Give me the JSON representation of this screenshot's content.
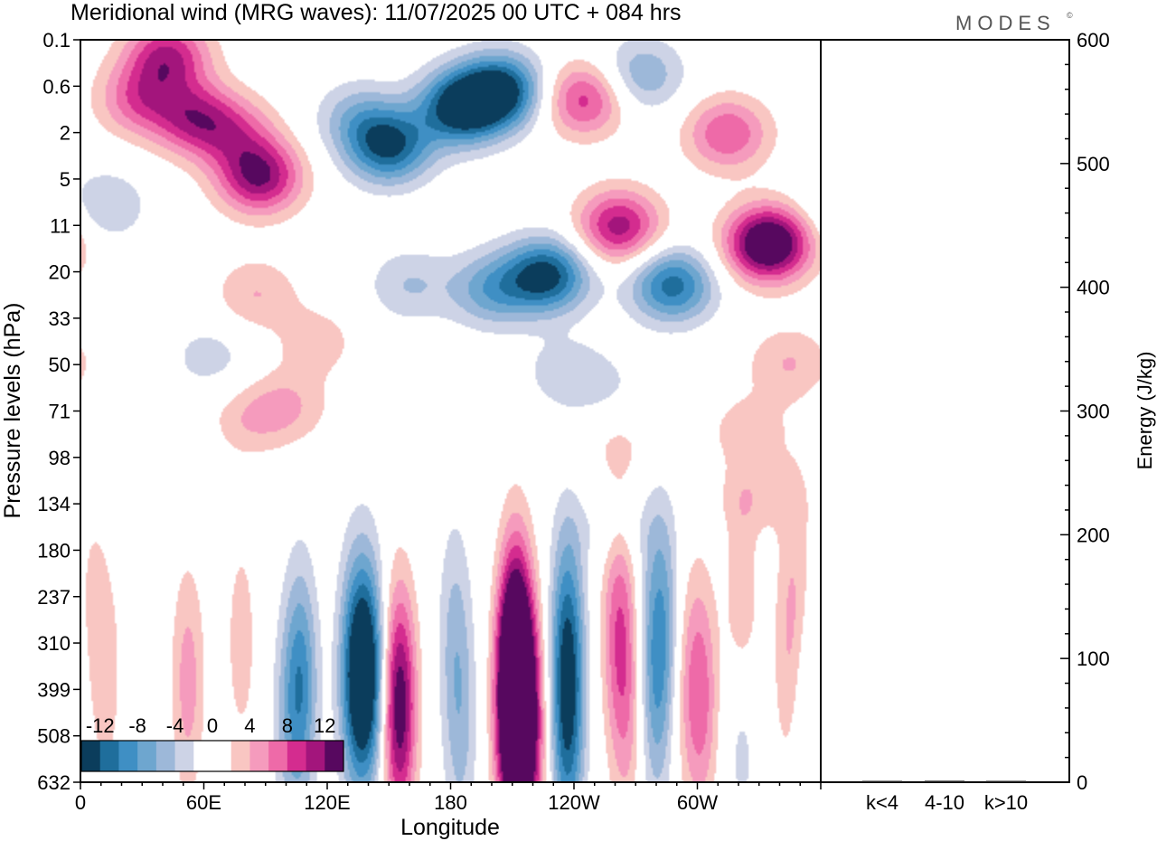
{
  "chart_data": {
    "type": "heatmap",
    "title": "Meridional wind (MRG waves):  11/07/2025  00 UTC  + 084 hrs",
    "brand": "MODES",
    "brand_mark": "©",
    "xlabel": "Longitude",
    "ylabel": "Pressure levels (hPa)",
    "ylabel_right": "Energy (J/kg)",
    "x_ticks": [
      {
        "lon": 0,
        "label": "0"
      },
      {
        "lon": 60,
        "label": "60E"
      },
      {
        "lon": 120,
        "label": "120E"
      },
      {
        "lon": 180,
        "label": "180"
      },
      {
        "lon": 240,
        "label": "120W"
      },
      {
        "lon": 300,
        "label": "60W"
      }
    ],
    "xlim": [
      0,
      360
    ],
    "pressure_levels": [
      "0.1",
      "0.6",
      "2",
      "5",
      "11",
      "20",
      "33",
      "50",
      "71",
      "98",
      "134",
      "180",
      "237",
      "310",
      "399",
      "508",
      "632"
    ],
    "colorbar": {
      "labels": [
        "-12",
        "-8",
        "-4",
        "0",
        "4",
        "8",
        "12"
      ],
      "colors": [
        "#0b3d5c",
        "#1f6e9c",
        "#3f8fc4",
        "#6ea6cf",
        "#9db8d9",
        "#cdd3e6",
        "#ffffff",
        "#ffffff",
        "#f9c6c2",
        "#f59bbd",
        "#ee6aa8",
        "#d42c8f",
        "#a3157c",
        "#57085f"
      ]
    },
    "contour_levels": [
      -12,
      -10,
      -8,
      -6,
      -4,
      -2,
      0,
      2,
      4,
      6,
      8,
      10,
      12
    ],
    "anomalies": [
      {
        "lon": 28,
        "p": 0.2,
        "v": 7
      },
      {
        "lon": 42,
        "p": 0.12,
        "v": 10
      },
      {
        "lon": 55,
        "p": 0.25,
        "v": 9
      },
      {
        "lon": 87,
        "p": 0.5,
        "v": 12
      },
      {
        "lon": 75,
        "p": 0.3,
        "v": 6
      },
      {
        "lon": 85,
        "p": 2.0,
        "v": 4
      },
      {
        "lon": 115,
        "p": 3.5,
        "v": 3
      },
      {
        "lon": 80,
        "p": 9,
        "v": 3
      },
      {
        "lon": 100,
        "p": 7.5,
        "v": 4
      },
      {
        "lon": 12,
        "p": 0.7,
        "v": -4
      },
      {
        "lon": 63,
        "p": 4.2,
        "v": -3
      },
      {
        "lon": 40,
        "p": 11.5,
        "v": -2
      },
      {
        "lon": 135,
        "p": 0.25,
        "v": -5
      },
      {
        "lon": 150,
        "p": 0.35,
        "v": -12
      },
      {
        "lon": 185,
        "p": 0.22,
        "v": -14
      },
      {
        "lon": 205,
        "p": 0.18,
        "v": -13
      },
      {
        "lon": 227,
        "p": 1.6,
        "v": -13
      },
      {
        "lon": 200,
        "p": 1.9,
        "v": -7
      },
      {
        "lon": 160,
        "p": 1.8,
        "v": -4
      },
      {
        "lon": 235,
        "p": 5,
        "v": -3
      },
      {
        "lon": 255,
        "p": 6,
        "v": -2
      },
      {
        "lon": 273,
        "p": 0.15,
        "v": -6
      },
      {
        "lon": 288,
        "p": 1.8,
        "v": -11
      },
      {
        "lon": 245,
        "p": 0.2,
        "v": 9
      },
      {
        "lon": 262,
        "p": 0.9,
        "v": 11
      },
      {
        "lon": 335,
        "p": 1.1,
        "v": 17
      },
      {
        "lon": 315,
        "p": 0.3,
        "v": 8
      },
      {
        "lon": 345,
        "p": 4.5,
        "v": 4
      },
      {
        "lon": 325,
        "p": 10,
        "v": 3
      },
      {
        "lon": 330,
        "p": 22,
        "v": 3
      },
      {
        "lon": 262,
        "p": 12,
        "v": 2
      },
      {
        "lon": 260,
        "p": 32,
        "v": -2
      },
      {
        "lon": 348,
        "p": 60,
        "v": 3
      },
      {
        "lon": 5,
        "p": 76,
        "v": 2
      },
      {
        "lon": 12,
        "p": 180,
        "v": 3
      },
      {
        "lon": 52,
        "p": 195,
        "v": 5
      },
      {
        "lon": 78,
        "p": 120,
        "v": 3
      },
      {
        "lon": 107,
        "p": 200,
        "v": -9
      },
      {
        "lon": 100,
        "p": 330,
        "v": -3
      },
      {
        "lon": 133,
        "p": 180,
        "v": -10
      },
      {
        "lon": 140,
        "p": 200,
        "v": -15
      },
      {
        "lon": 155,
        "p": 260,
        "v": 14
      },
      {
        "lon": 140,
        "p": 400,
        "v": 3
      },
      {
        "lon": 182,
        "p": 105,
        "v": -4
      },
      {
        "lon": 185,
        "p": 370,
        "v": -4
      },
      {
        "lon": 212,
        "p": 135,
        "v": 13
      },
      {
        "lon": 210,
        "p": 280,
        "v": 17
      },
      {
        "lon": 218,
        "p": 360,
        "v": 11
      },
      {
        "lon": 237,
        "p": 110,
        "v": -9
      },
      {
        "lon": 237,
        "p": 370,
        "v": -9
      },
      {
        "lon": 262,
        "p": 100,
        "v": 7
      },
      {
        "lon": 266,
        "p": 300,
        "v": 4
      },
      {
        "lon": 279,
        "p": 78,
        "v": -3
      },
      {
        "lon": 285,
        "p": 98,
        "v": -5
      },
      {
        "lon": 280,
        "p": 260,
        "v": -5
      },
      {
        "lon": 293,
        "p": 180,
        "v": 3
      },
      {
        "lon": 302,
        "p": 230,
        "v": 7
      },
      {
        "lon": 322,
        "p": 105,
        "v": 6
      },
      {
        "lon": 322,
        "p": 260,
        "v": -5
      },
      {
        "lon": 345,
        "p": 180,
        "v": 3
      },
      {
        "lon": 354,
        "p": 280,
        "v": -3
      }
    ],
    "energy_axis": {
      "ylim": [
        0,
        600
      ],
      "ticks": [
        "0",
        "100",
        "200",
        "300",
        "400",
        "500",
        "600"
      ]
    },
    "energy_bars": [
      {
        "label": "k<4",
        "value": 0.3
      },
      {
        "label": "4-10",
        "value": 1.2
      },
      {
        "label": "k>10",
        "value": 0.2
      }
    ]
  }
}
